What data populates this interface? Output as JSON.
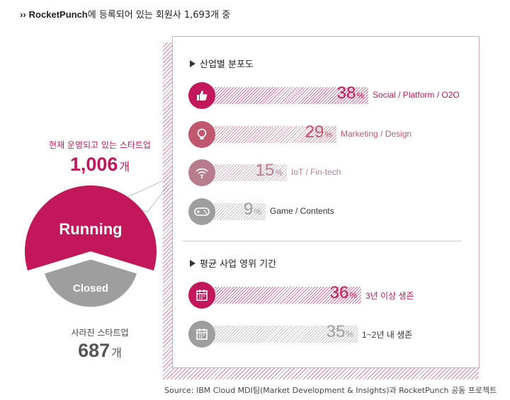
{
  "header": {
    "arrow": "››",
    "brand": "RocketPunch",
    "text": "에 등록되어 있는 회원사 1,693개 중"
  },
  "left": {
    "running_label": "현재 운영되고 있는 스타트업",
    "running_count": "1,006",
    "closed_label": "사라진 스타트업",
    "closed_count": "687",
    "unit": "개"
  },
  "colors": {
    "magenta": "#c2185b",
    "grey": "#9e9e9e"
  },
  "chart_data": [
    {
      "type": "pie",
      "categories": [
        "Running",
        "Closed"
      ],
      "values": [
        1006,
        687
      ],
      "labels": [
        "Running",
        "Closed"
      ]
    },
    {
      "type": "bar",
      "title": "산업별 분포도",
      "categories": [
        "Social / Platform / O2O",
        "Marketing / Design",
        "IoT / Fin-tech",
        "Game / Contents"
      ],
      "values": [
        38,
        29,
        15,
        9
      ],
      "unit": "%",
      "icons": [
        "thumbs-up-icon",
        "lightbulb-icon",
        "wifi-icon",
        "gamepad-icon"
      ],
      "colors": [
        "#c2185b",
        "#c0576f",
        "#b77d8e",
        "#9e9e9e"
      ]
    },
    {
      "type": "bar",
      "title": "평균 사업 영위 기간",
      "categories": [
        "3년 이상 생존",
        "1~2년 내 생존"
      ],
      "values": [
        36,
        35
      ],
      "unit": "%",
      "icons": [
        "calendar-icon",
        "calendar-icon"
      ],
      "colors": [
        "#c2185b",
        "#9e9e9e"
      ]
    }
  ],
  "source": "Source: IBM Cloud MDI팀(Market Development & Insights)과 RocketPunch 공동 프로젝트"
}
